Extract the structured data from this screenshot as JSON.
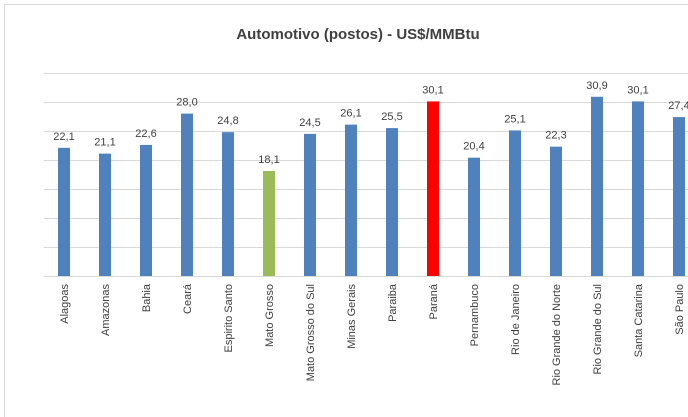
{
  "chart_data": {
    "type": "bar",
    "title": "Automotivo (postos) - US$/MMBtu",
    "categories": [
      "Alagoas",
      "Amazonas",
      "Bahia",
      "Ceará",
      "Espirito Santo",
      "Mato Grosso",
      "Mato Grosso do Sul",
      "Minas Gerais",
      "Paraiba",
      "Paraná",
      "Pernambuco",
      "Rio de Janeiro",
      "Rio Grande do Norte",
      "Rio Grande do Sul",
      "Santa Catarina",
      "São Paulo"
    ],
    "values": [
      22.1,
      21.1,
      22.6,
      28.0,
      24.8,
      18.1,
      24.5,
      26.1,
      25.5,
      30.1,
      20.4,
      25.1,
      22.3,
      30.9,
      30.1,
      27.4
    ],
    "value_labels": [
      "22,1",
      "21,1",
      "22,6",
      "28,0",
      "24,8",
      "18,1",
      "24,5",
      "26,1",
      "25,5",
      "30,1",
      "20,4",
      "25,1",
      "22,3",
      "30,9",
      "30,1",
      "27,4"
    ],
    "colors": [
      "#4f81bd",
      "#4f81bd",
      "#4f81bd",
      "#4f81bd",
      "#4f81bd",
      "#9bbb59",
      "#4f81bd",
      "#4f81bd",
      "#4f81bd",
      "#ff0000",
      "#4f81bd",
      "#4f81bd",
      "#4f81bd",
      "#4f81bd",
      "#4f81bd",
      "#4f81bd"
    ],
    "ylim": [
      0,
      35
    ],
    "yticks": [
      0,
      5,
      10,
      15,
      20,
      25,
      30,
      35
    ],
    "grid": true
  }
}
